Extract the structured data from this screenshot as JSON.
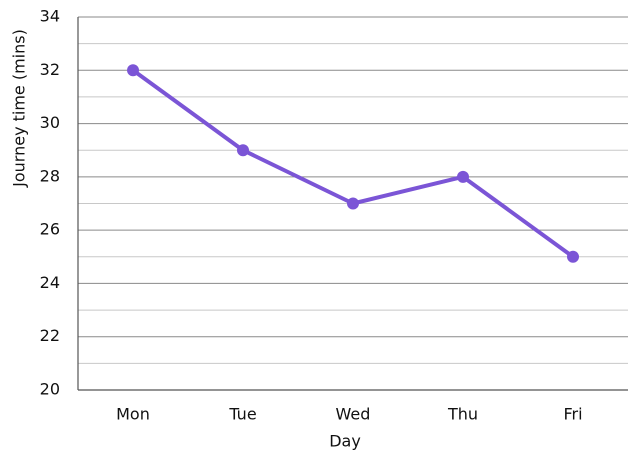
{
  "chart_data": {
    "type": "line",
    "x_label": "Day",
    "y_label": "Journey time (mins)",
    "categories": [
      "Mon",
      "Tue",
      "Wed",
      "Thu",
      "Fri"
    ],
    "series": [
      {
        "name": "Journey time",
        "color": "#7b55d6",
        "values": [
          32,
          29,
          27,
          28,
          25
        ]
      }
    ],
    "ylim": [
      20,
      34
    ],
    "yticks": [
      20,
      22,
      24,
      26,
      28,
      30,
      32,
      34
    ],
    "minor_yticks": [
      21,
      23,
      25,
      27,
      29,
      31,
      33
    ],
    "grid": true
  }
}
